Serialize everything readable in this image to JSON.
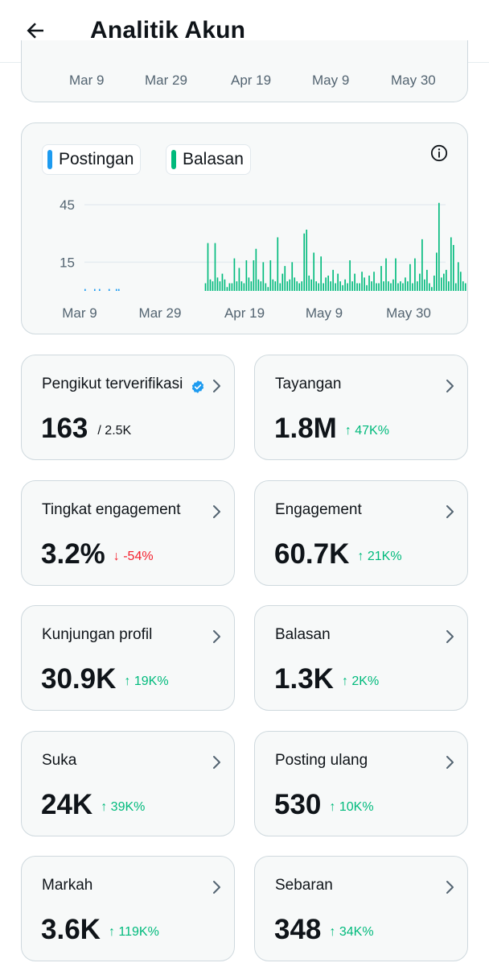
{
  "header": {
    "title": "Analitik Akun"
  },
  "prev_chart": {
    "x_ticks": [
      "Mar 9",
      "Mar 29",
      "Apr 19",
      "May 9",
      "May 30"
    ]
  },
  "legend": [
    {
      "label": "Postingan",
      "color": "#1d9bf0"
    },
    {
      "label": "Balasan",
      "color": "#00ba7c"
    }
  ],
  "chart_data": {
    "type": "bar",
    "x_ticks": [
      "Mar 9",
      "Mar 29",
      "Apr 19",
      "May 9",
      "May 30"
    ],
    "y_ticks": [
      15,
      45
    ],
    "ylim": [
      0,
      50
    ],
    "grid": true,
    "legend_position": "top-left",
    "series": [
      {
        "name": "Postingan",
        "color": "#1d9bf0",
        "values": [
          1,
          0,
          0,
          0,
          1,
          0,
          1,
          0,
          0,
          0,
          1,
          0,
          0,
          1,
          1,
          0,
          0,
          0,
          0,
          0,
          0,
          0,
          0,
          0,
          0,
          0,
          0,
          0,
          0,
          0,
          0,
          0,
          0,
          0,
          0,
          0,
          0,
          0,
          0,
          0,
          0,
          0,
          0,
          0,
          0,
          0,
          0,
          0,
          0,
          0,
          0,
          0,
          0,
          0,
          0,
          0,
          0,
          0,
          0,
          0,
          0,
          0,
          0,
          0,
          0,
          0,
          0,
          0,
          0,
          0,
          0,
          0,
          0,
          0,
          0,
          0,
          0,
          0,
          0,
          0,
          0,
          0,
          0,
          0,
          0,
          0,
          0,
          0,
          0,
          0,
          0,
          0,
          0,
          0,
          0,
          0,
          0,
          0,
          0,
          0,
          0,
          0,
          0,
          0,
          0,
          0,
          0,
          0,
          0,
          0,
          0,
          0,
          0,
          0,
          0,
          0,
          0,
          0,
          0,
          0,
          0,
          0,
          0,
          0,
          0,
          0,
          0,
          0,
          0,
          0,
          0,
          0,
          0,
          0,
          0,
          0,
          0,
          0,
          0,
          0,
          0,
          0,
          0,
          0,
          0,
          0,
          0,
          0,
          0,
          0
        ]
      },
      {
        "name": "Balasan",
        "color": "#00ba7c",
        "values": [
          0,
          0,
          0,
          0,
          0,
          0,
          0,
          0,
          0,
          0,
          0,
          0,
          0,
          0,
          0,
          0,
          0,
          0,
          0,
          0,
          0,
          0,
          0,
          0,
          0,
          0,
          0,
          0,
          0,
          0,
          0,
          0,
          0,
          0,
          0,
          0,
          0,
          0,
          0,
          0,
          0,
          0,
          0,
          0,
          0,
          0,
          0,
          0,
          0,
          0,
          4,
          25,
          6,
          5,
          25,
          7,
          5,
          9,
          6,
          2,
          4,
          4,
          17,
          5,
          12,
          5,
          4,
          16,
          7,
          5,
          16,
          22,
          6,
          5,
          15,
          4,
          2,
          16,
          6,
          5,
          28,
          4,
          9,
          13,
          5,
          6,
          15,
          7,
          5,
          4,
          5,
          30,
          32,
          8,
          6,
          20,
          5,
          4,
          18,
          4,
          7,
          8,
          5,
          11,
          4,
          9,
          5,
          3,
          6,
          4,
          16,
          5,
          9,
          4,
          4,
          10,
          7,
          3,
          8,
          5,
          10,
          4,
          4,
          13,
          5,
          17,
          5,
          4,
          6,
          17,
          4,
          5,
          4,
          7,
          5,
          14,
          4,
          17,
          5,
          9,
          27,
          6,
          11,
          4,
          2,
          8,
          20,
          46,
          7,
          9,
          11,
          5,
          28,
          24,
          4,
          15,
          10,
          5,
          4,
          14,
          3,
          4,
          15
        ]
      }
    ]
  },
  "metrics": [
    {
      "title": "Pengikut terverifikasi",
      "value": "163",
      "suffix": "/ 2.5K",
      "verified": true
    },
    {
      "title": "Tayangan",
      "value": "1.8M",
      "change": "↑ 47K%",
      "direction": "up"
    },
    {
      "title": "Tingkat engagement",
      "value": "3.2%",
      "change": "↓ -54%",
      "direction": "down"
    },
    {
      "title": "Engagement",
      "value": "60.7K",
      "change": "↑ 21K%",
      "direction": "up"
    },
    {
      "title": "Kunjungan profil",
      "value": "30.9K",
      "change": "↑ 19K%",
      "direction": "up"
    },
    {
      "title": "Balasan",
      "value": "1.3K",
      "change": "↑ 2K%",
      "direction": "up"
    },
    {
      "title": "Suka",
      "value": "24K",
      "change": "↑ 39K%",
      "direction": "up"
    },
    {
      "title": "Posting ulang",
      "value": "530",
      "change": "↑ 10K%",
      "direction": "up"
    },
    {
      "title": "Markah",
      "value": "3.6K",
      "change": "↑ 119K%",
      "direction": "up"
    },
    {
      "title": "Sebaran",
      "value": "348",
      "change": "↑ 34K%",
      "direction": "up"
    }
  ]
}
